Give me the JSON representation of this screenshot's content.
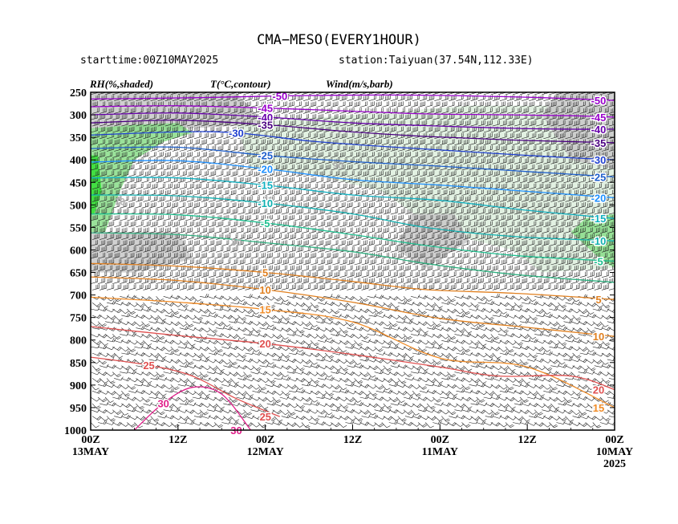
{
  "header": {
    "title": "CMA−MESO(EVERY1HOUR)",
    "starttime": "starttime:00Z10MAY2025",
    "station": "station:Taiyuan(37.54N,112.33E)",
    "rh_label": "RH(%,shaded)",
    "t_label": "T(°C,contour)",
    "wind_label": "Wind(m/s,barb)"
  },
  "chart_data": {
    "type": "heatmap",
    "title": "CMA−MESO(EVERY1HOUR)",
    "y_axis": {
      "ticks": [
        "250",
        "300",
        "350",
        "400",
        "450",
        "500",
        "550",
        "600",
        "650",
        "700",
        "750",
        "800",
        "850",
        "900",
        "950",
        "1000"
      ],
      "range": [
        250,
        1000
      ],
      "orientation": "pressure increases downward"
    },
    "x_axis": {
      "ticks": [
        {
          "hour": 0,
          "label": "00Z",
          "sublabel": "13MAY"
        },
        {
          "hour": 12,
          "label": "12Z",
          "sublabel": ""
        },
        {
          "hour": 24,
          "label": "00Z",
          "sublabel": "12MAY"
        },
        {
          "hour": 36,
          "label": "12Z",
          "sublabel": ""
        },
        {
          "hour": 48,
          "label": "00Z",
          "sublabel": "11MAY"
        },
        {
          "hour": 60,
          "label": "12Z",
          "sublabel": ""
        },
        {
          "hour": 72,
          "label": "00Z",
          "sublabel": "10MAY",
          "sublabel2": "2025"
        }
      ],
      "range": [
        0,
        72
      ],
      "note": "time runs right-to-left (latest on left)"
    },
    "temperature_contours": [
      {
        "value": -50,
        "label": "-50",
        "color": "#9900cc",
        "points": [
          [
            0,
            265
          ],
          [
            15,
            262
          ],
          [
            26,
            258
          ],
          [
            40,
            256
          ],
          [
            52,
            258
          ],
          [
            62,
            262
          ],
          [
            72,
            268
          ]
        ]
      },
      {
        "value": -45,
        "label": "-45",
        "color": "#9900cc",
        "points": [
          [
            0,
            282
          ],
          [
            12,
            280
          ],
          [
            24,
            285
          ],
          [
            36,
            292
          ],
          [
            46,
            298
          ],
          [
            58,
            300
          ],
          [
            66,
            302
          ],
          [
            72,
            305
          ]
        ]
      },
      {
        "value": -40,
        "label": "-40",
        "color": "#6600aa",
        "points": [
          [
            0,
            300
          ],
          [
            12,
            296
          ],
          [
            24,
            305
          ],
          [
            36,
            318
          ],
          [
            46,
            324
          ],
          [
            58,
            330
          ],
          [
            66,
            332
          ],
          [
            72,
            332
          ]
        ]
      },
      {
        "value": -35,
        "label": "-35",
        "color": "#4b0082",
        "points": [
          [
            0,
            318
          ],
          [
            12,
            312
          ],
          [
            24,
            322
          ],
          [
            36,
            338
          ],
          [
            46,
            348
          ],
          [
            58,
            356
          ],
          [
            72,
            362
          ]
        ]
      },
      {
        "value": -30,
        "label": "-30",
        "color": "#2040d0",
        "points": [
          [
            0,
            345
          ],
          [
            12,
            338
          ],
          [
            20,
            340
          ],
          [
            30,
            358
          ],
          [
            40,
            370
          ],
          [
            52,
            382
          ],
          [
            62,
            392
          ],
          [
            72,
            400
          ]
        ]
      },
      {
        "value": -25,
        "label": "-25",
        "color": "#1e5fcc",
        "points": [
          [
            0,
            375
          ],
          [
            12,
            372
          ],
          [
            24,
            390
          ],
          [
            36,
            404
          ],
          [
            48,
            414
          ],
          [
            60,
            426
          ],
          [
            72,
            438
          ]
        ]
      },
      {
        "value": -20,
        "label": "-20",
        "color": "#1e90ff",
        "points": [
          [
            0,
            405
          ],
          [
            12,
            402
          ],
          [
            24,
            420
          ],
          [
            36,
            444
          ],
          [
            48,
            456
          ],
          [
            60,
            470
          ],
          [
            72,
            484
          ]
        ]
      },
      {
        "value": -15,
        "label": "-15",
        "color": "#10b0c0",
        "points": [
          [
            0,
            440
          ],
          [
            12,
            440
          ],
          [
            24,
            456
          ],
          [
            36,
            478
          ],
          [
            48,
            490
          ],
          [
            60,
            512
          ],
          [
            72,
            530
          ]
        ]
      },
      {
        "value": -10,
        "label": "-10",
        "color": "#10b0b0",
        "points": [
          [
            0,
            478
          ],
          [
            12,
            480
          ],
          [
            24,
            496
          ],
          [
            36,
            520
          ],
          [
            46,
            550
          ],
          [
            58,
            570
          ],
          [
            72,
            580
          ]
        ]
      },
      {
        "value": -5,
        "label": "-5",
        "color": "#20c090",
        "points": [
          [
            0,
            520
          ],
          [
            12,
            522
          ],
          [
            24,
            540
          ],
          [
            36,
            566
          ],
          [
            46,
            590
          ],
          [
            58,
            612
          ],
          [
            72,
            625
          ]
        ]
      },
      {
        "value": 0,
        "label": "",
        "color": "#30b080",
        "points": [
          [
            0,
            562
          ],
          [
            12,
            566
          ],
          [
            24,
            584
          ],
          [
            36,
            604
          ],
          [
            46,
            630
          ],
          [
            58,
            654
          ],
          [
            72,
            672
          ]
        ]
      },
      {
        "value": 5,
        "label": "5",
        "color": "#e08020",
        "points": [
          [
            0,
            630
          ],
          [
            12,
            636
          ],
          [
            24,
            650
          ],
          [
            36,
            670
          ],
          [
            46,
            688
          ],
          [
            58,
            696
          ],
          [
            72,
            710
          ]
        ]
      },
      {
        "value": 10,
        "label": "10",
        "color": "#e08020",
        "points": [
          [
            0,
            660
          ],
          [
            12,
            668
          ],
          [
            24,
            688
          ],
          [
            36,
            716
          ],
          [
            48,
            752
          ],
          [
            60,
            772
          ],
          [
            72,
            792
          ]
        ]
      },
      {
        "value": 15,
        "label": "15",
        "color": "#f08c28",
        "points": [
          [
            0,
            705
          ],
          [
            12,
            716
          ],
          [
            24,
            732
          ],
          [
            36,
            760
          ],
          [
            48,
            840
          ],
          [
            60,
            860
          ],
          [
            72,
            950
          ]
        ]
      },
      {
        "value": 20,
        "label": "20",
        "color": "#e05050",
        "points": [
          [
            0,
            770
          ],
          [
            12,
            790
          ],
          [
            24,
            808
          ],
          [
            36,
            832
          ],
          [
            48,
            860
          ],
          [
            56,
            880
          ],
          [
            66,
            880
          ],
          [
            72,
            910
          ]
        ]
      },
      {
        "value": 25,
        "label": "25",
        "color": "#e05050",
        "points": [
          [
            0,
            838
          ],
          [
            8,
            856
          ],
          [
            14,
            880
          ],
          [
            20,
            930
          ],
          [
            26,
            970
          ]
        ]
      },
      {
        "value": 30,
        "label": "30",
        "color": "#e0208a",
        "points": [
          [
            6,
            1000
          ],
          [
            10,
            940
          ],
          [
            14,
            905
          ],
          [
            18,
            920
          ],
          [
            22,
            1000
          ]
        ]
      }
    ],
    "rh_contours": [
      {
        "label": "30",
        "color": "#b0b0b0"
      },
      {
        "label": "70",
        "color": "#b0b0b0"
      },
      {
        "label": "90",
        "color": "#b0b0b0"
      }
    ],
    "rh_shading": {
      "levels": [
        {
          "min": 70,
          "color": "#dff0df"
        },
        {
          "min": 80,
          "color": "#c8c8c8"
        },
        {
          "min": 90,
          "color": "#88dd88"
        },
        {
          "min": 95,
          "color": "#33dd33"
        }
      ],
      "regions": [
        {
          "level": 80,
          "polygon": [
            [
              0,
              250
            ],
            [
              20,
              250
            ],
            [
              24,
              320
            ],
            [
              14,
              330
            ],
            [
              4,
              340
            ],
            [
              0,
              330
            ]
          ]
        },
        {
          "level": 90,
          "polygon": [
            [
              0,
              330
            ],
            [
              6,
              322
            ],
            [
              12,
              318
            ],
            [
              14,
              340
            ],
            [
              10,
              360
            ],
            [
              6,
              400
            ],
            [
              4,
              470
            ],
            [
              2,
              560
            ],
            [
              0,
              560
            ]
          ]
        },
        {
          "level": 95,
          "polygon": [
            [
              0,
              390
            ],
            [
              1,
              390
            ],
            [
              1.5,
              470
            ],
            [
              0.5,
              520
            ],
            [
              0,
              520
            ]
          ]
        },
        {
          "level": 80,
          "polygon": [
            [
              0,
              560
            ],
            [
              12,
              560
            ],
            [
              14,
              620
            ],
            [
              6,
              650
            ],
            [
              0,
              650
            ]
          ]
        },
        {
          "level": 70,
          "polygon": [
            [
              20,
              320
            ],
            [
              36,
              300
            ],
            [
              52,
              280
            ],
            [
              70,
              280
            ],
            [
              72,
              300
            ],
            [
              72,
              640
            ],
            [
              62,
              650
            ],
            [
              58,
              600
            ],
            [
              48,
              560
            ],
            [
              40,
              470
            ],
            [
              30,
              430
            ],
            [
              22,
              420
            ]
          ]
        },
        {
          "level": 80,
          "polygon": [
            [
              44,
              520
            ],
            [
              50,
              520
            ],
            [
              52,
              580
            ],
            [
              46,
              640
            ],
            [
              42,
              600
            ]
          ]
        },
        {
          "level": 80,
          "polygon": [
            [
              64,
              250
            ],
            [
              72,
              250
            ],
            [
              72,
              420
            ],
            [
              66,
              400
            ],
            [
              62,
              300
            ]
          ]
        },
        {
          "level": 90,
          "polygon": [
            [
              68,
              530
            ],
            [
              72,
              520
            ],
            [
              72,
              640
            ],
            [
              70,
              620
            ],
            [
              66,
              560
            ]
          ]
        }
      ]
    },
    "wind_note": "wind barbs on every hourly column at model levels"
  }
}
